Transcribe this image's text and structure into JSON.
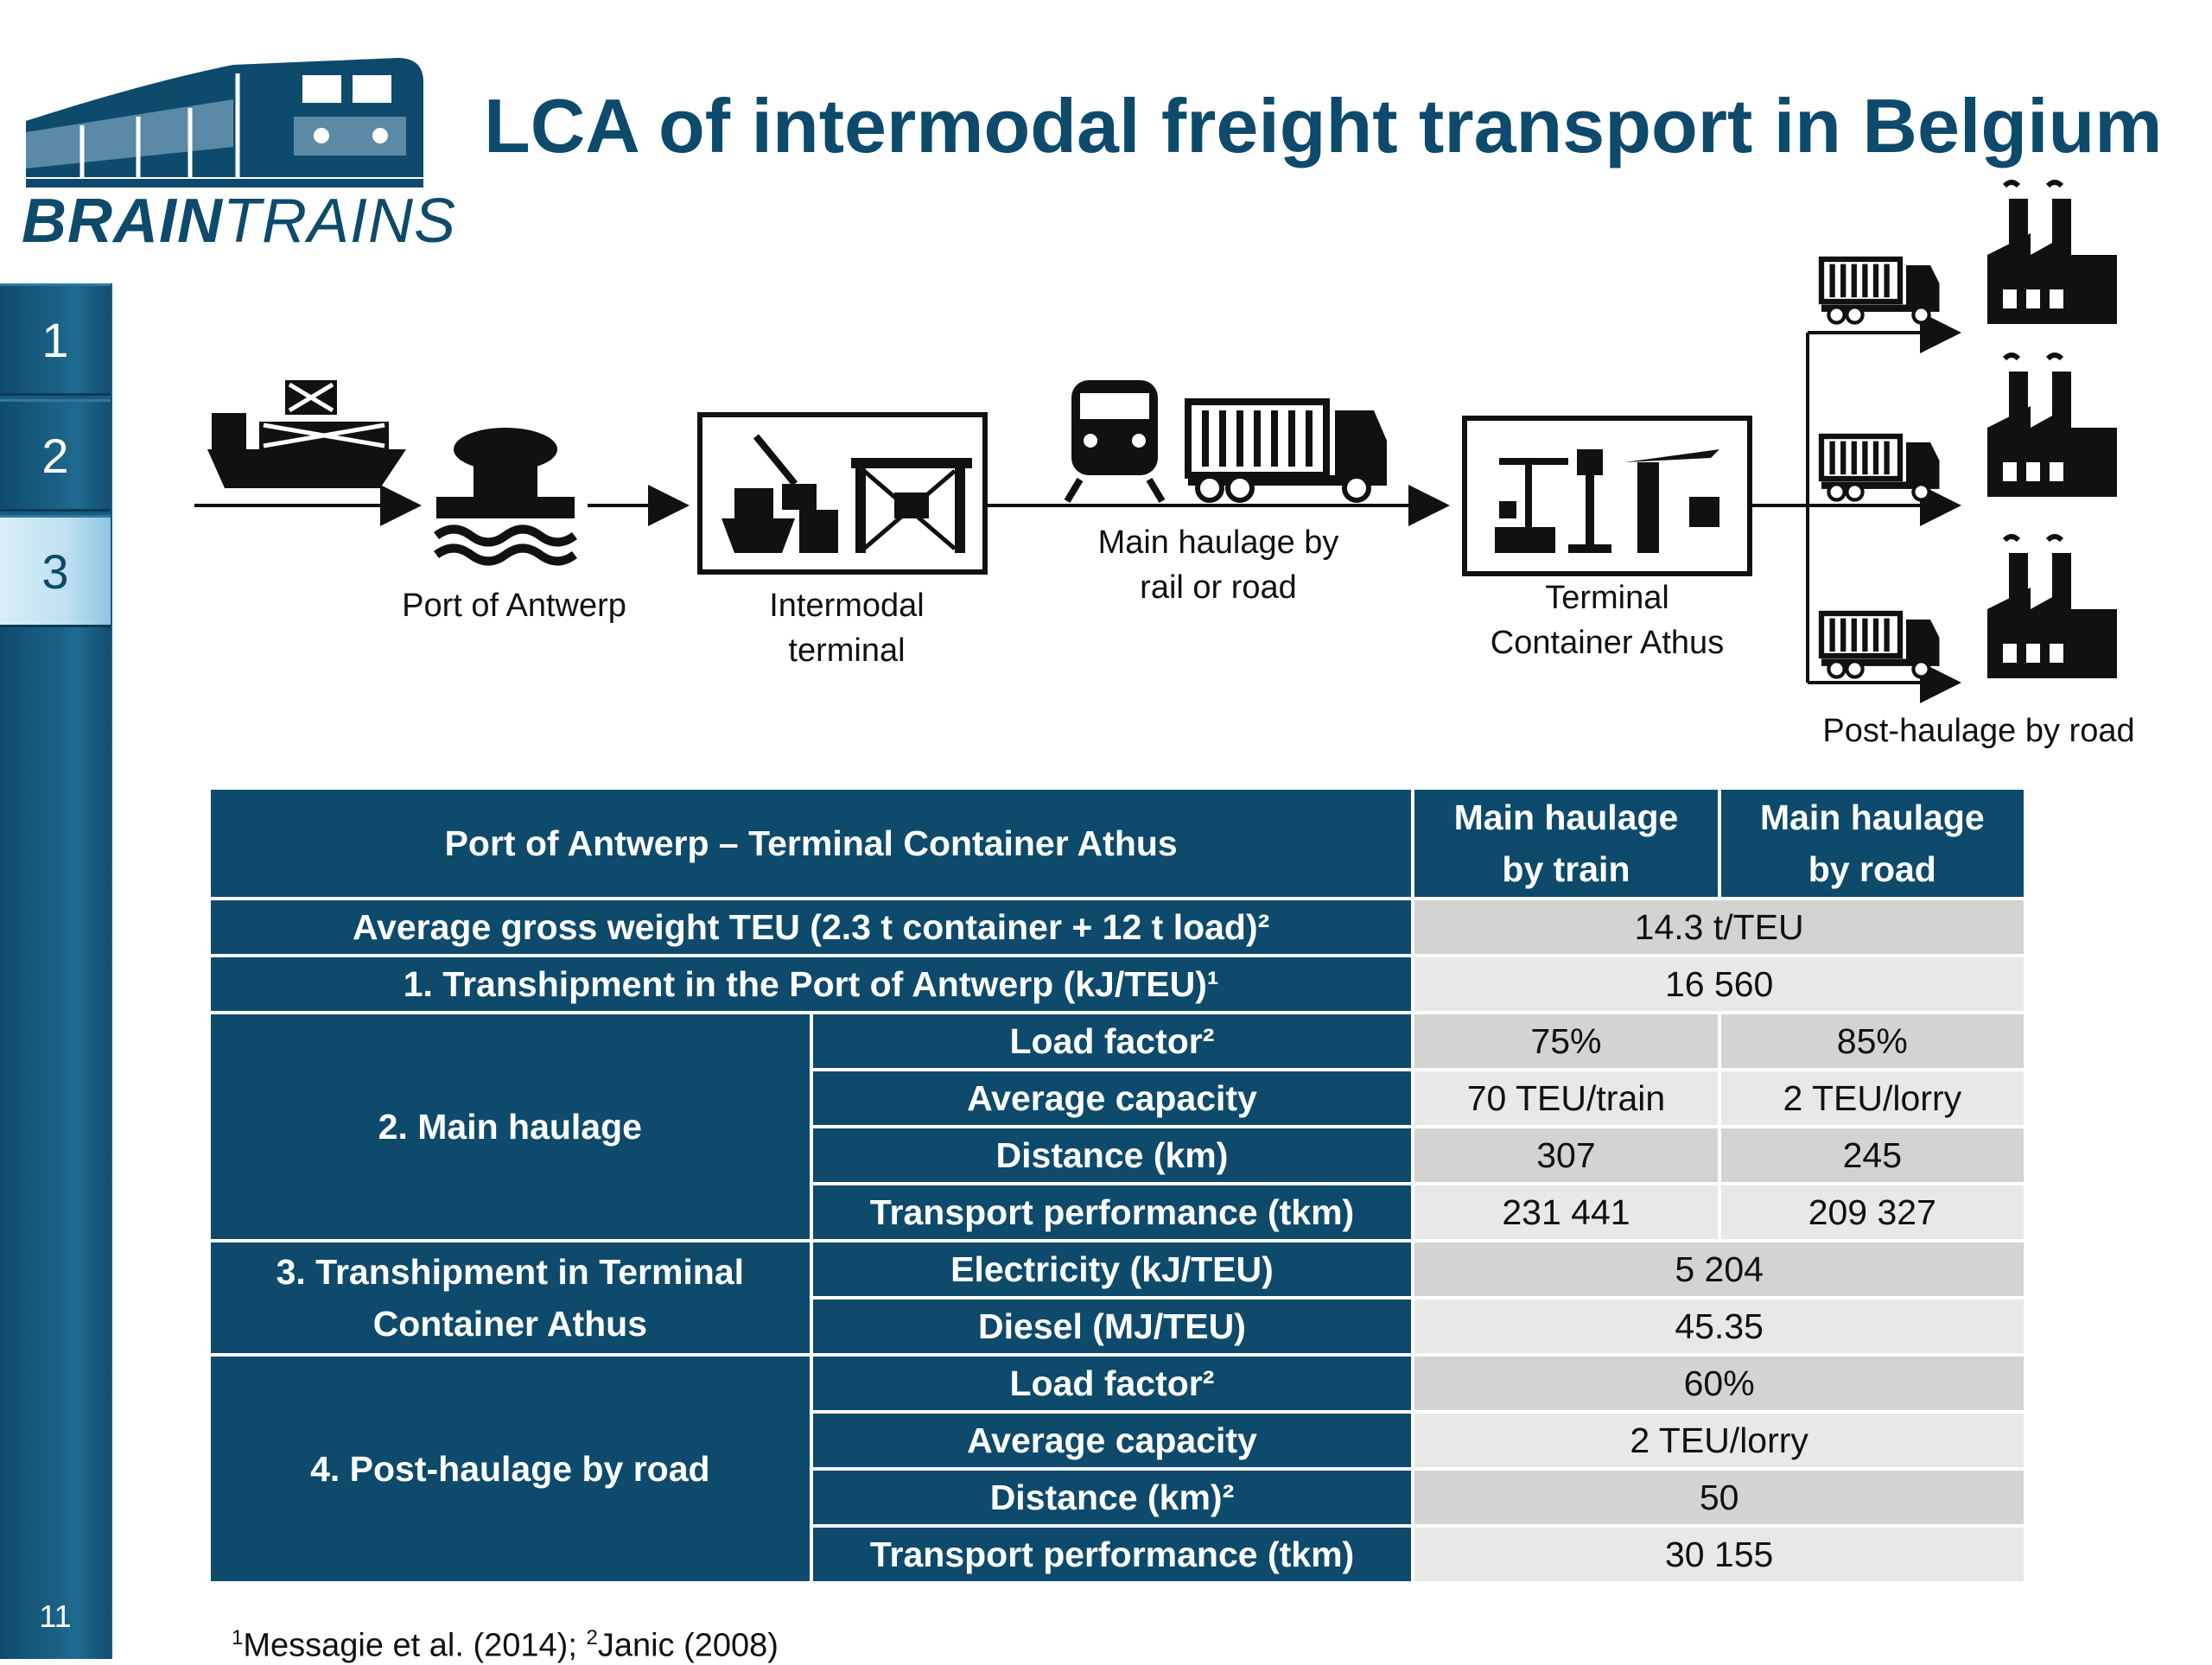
{
  "logo": {
    "brand_bold": "BRAIN",
    "brand_thin": "TRAINS"
  },
  "title": "LCA of intermodal freight transport in Belgium",
  "nav": {
    "items": [
      "1",
      "2",
      "3"
    ],
    "active": "3",
    "page_number": "11"
  },
  "diagram": {
    "port_label": "Port of Antwerp",
    "intermodal_line1": "Intermodal",
    "intermodal_line2": "terminal",
    "main_haulage_line1": "Main haulage by",
    "main_haulage_line2": "rail or road",
    "terminal_line1": "Terminal",
    "terminal_line2": "Container Athus",
    "post_haulage": "Post-haulage by road"
  },
  "table": {
    "header_route": "Port of Antwerp – Terminal Container Athus",
    "header_train_1": "Main haulage",
    "header_train_2": "by train",
    "header_road_1": "Main haulage",
    "header_road_2": "by road",
    "gross_weight_label": "Average gross weight TEU (2.3 t container + 12 t load)²",
    "gross_weight_value": "14.3 t/TEU",
    "tranship_antwerp_label": "1. Transhipment in the Port of Antwerp (kJ/TEU)¹",
    "tranship_antwerp_value": "16 560",
    "main_haulage_group": "2. Main haulage",
    "mh_load_factor_label": "Load factor²",
    "mh_load_factor_train": "75%",
    "mh_load_factor_road": "85%",
    "mh_capacity_label": "Average capacity",
    "mh_capacity_train": "70 TEU/train",
    "mh_capacity_road": "2 TEU/lorry",
    "mh_distance_label": "Distance (km)",
    "mh_distance_train": "307",
    "mh_distance_road": "245",
    "mh_performance_label": "Transport performance (tkm)",
    "mh_performance_train": "231 441",
    "mh_performance_road": "209 327",
    "tranship_athus_group_1": "3. Transhipment in Terminal",
    "tranship_athus_group_2": "Container Athus",
    "electricity_label": "Electricity (kJ/TEU)",
    "electricity_value": "5 204",
    "diesel_label": "Diesel (MJ/TEU)",
    "diesel_value": "45.35",
    "post_haulage_group": "4. Post-haulage by road",
    "ph_load_factor_label": "Load factor²",
    "ph_load_factor_value": "60%",
    "ph_capacity_label": "Average capacity",
    "ph_capacity_value": "2 TEU/lorry",
    "ph_distance_label": "Distance (km)²",
    "ph_distance_value": "50",
    "ph_performance_label": "Transport performance (tkm)",
    "ph_performance_value": "30 155"
  },
  "footnote": {
    "ref1_mark": "1",
    "ref1": "Messagie et al. (2014); ",
    "ref2_mark": "2",
    "ref2": "Janic (2008)"
  },
  "colors": {
    "brand": "#0d4a6b",
    "cell_dark": "#d3d3d3",
    "cell_light": "#e8e8e8"
  },
  "icons": [
    "ship-icon",
    "bollard-icon",
    "port-crane-icon",
    "locomotive-icon",
    "truck-icon",
    "terminal-crane-icon",
    "factory-icon"
  ]
}
